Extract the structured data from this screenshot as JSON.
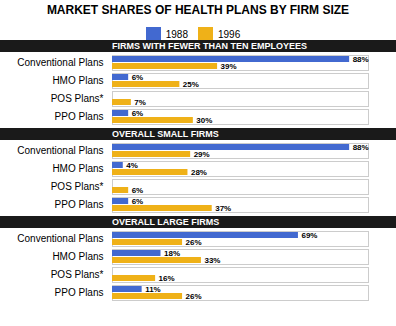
{
  "chart_data": {
    "type": "bar",
    "orientation": "horizontal",
    "title": "MARKET SHARES OF HEALTH PLANS BY FIRM SIZE",
    "legend": "top",
    "data_labels": true,
    "tick_labels": "y",
    "grid": false,
    "xlim": [
      0,
      95
    ],
    "sections": [
      {
        "label": "FIRMS WITH FEWER THAN TEN EMPLOYEES",
        "categories": [
          "Conventional Plans",
          "HMO Plans",
          "POS Plans*",
          "PPO Plans"
        ],
        "series": [
          {
            "name": "1988",
            "values": [
              88,
              6,
              null,
              6
            ],
            "value_labels": [
              "88%",
              "6%",
              null,
              "6%"
            ]
          },
          {
            "name": "1996",
            "values": [
              39,
              25,
              7,
              30
            ],
            "value_labels": [
              "39%",
              "25%",
              "7%",
              "30%"
            ]
          }
        ]
      },
      {
        "label": "OVERALL SMALL FIRMS",
        "categories": [
          "Conventional Plans",
          "HMO Plans",
          "POS Plans*",
          "PPO Plans"
        ],
        "series": [
          {
            "name": "1988",
            "values": [
              88,
              4,
              null,
              6
            ],
            "value_labels": [
              "88%",
              "4%",
              null,
              "6%"
            ]
          },
          {
            "name": "1996",
            "values": [
              29,
              28,
              6,
              37
            ],
            "value_labels": [
              "29%",
              "28%",
              "6%",
              "37%"
            ]
          }
        ]
      },
      {
        "label": "OVERALL LARGE FIRMS",
        "categories": [
          "Conventional Plans",
          "HMO Plans",
          "POS Plans*",
          "PPO Plans"
        ],
        "series": [
          {
            "name": "1988",
            "values": [
              69,
              18,
              null,
              11
            ],
            "value_labels": [
              "69%",
              "18%",
              null,
              "11%"
            ]
          },
          {
            "name": "1996",
            "values": [
              26,
              33,
              16,
              26
            ],
            "value_labels": [
              "26%",
              "33%",
              "16%",
              "26%"
            ]
          }
        ]
      }
    ]
  }
}
